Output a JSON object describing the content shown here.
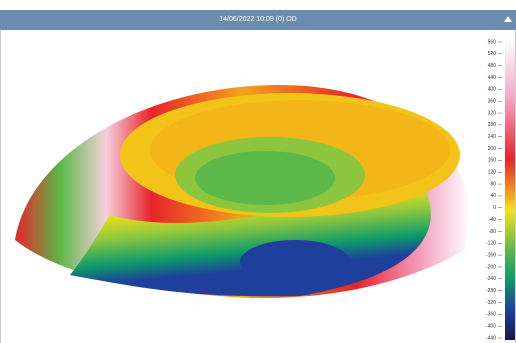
{
  "header": {
    "title": "14/06/2022 10:09 (0) OD"
  },
  "scale": {
    "labels": [
      560,
      520,
      480,
      440,
      400,
      360,
      320,
      280,
      240,
      200,
      160,
      120,
      80,
      40,
      0,
      -40,
      -80,
      -120,
      -160,
      -200,
      -240,
      -280,
      -320,
      -360,
      -400,
      -440
    ]
  }
}
